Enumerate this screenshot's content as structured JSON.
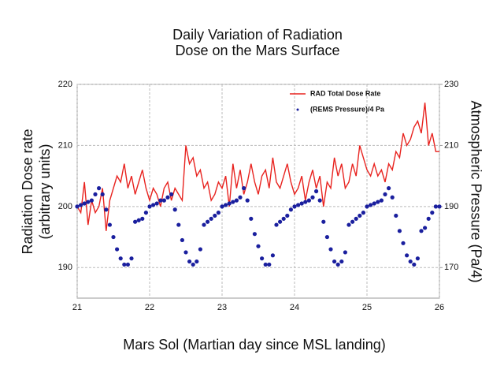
{
  "chart_data": {
    "type": "line",
    "title": [
      "Daily Variation of Radiation",
      "Dose on the Mars Surface"
    ],
    "xlabel": "Mars Sol (Martian day since MSL landing)",
    "ylabel": [
      "Radiation Dose rate",
      "(arbitrary units)"
    ],
    "y2label": "Atmospheric Pressure (Pa/4)",
    "xlim": [
      21,
      26
    ],
    "xticks": [
      21,
      22,
      23,
      24,
      25,
      26
    ],
    "ylim": [
      185,
      220
    ],
    "yticks": [
      190,
      200,
      210,
      220
    ],
    "y2lim": [
      160,
      230
    ],
    "y2ticks": [
      170,
      190,
      210,
      230
    ],
    "grid": true,
    "legend": "upper right",
    "x": [
      21,
      21.05,
      21.1,
      21.15,
      21.2,
      21.25,
      21.3,
      21.35,
      21.4,
      21.45,
      21.5,
      21.55,
      21.6,
      21.65,
      21.7,
      21.75,
      21.8,
      21.85,
      21.9,
      21.95,
      22,
      22.05,
      22.1,
      22.15,
      22.2,
      22.25,
      22.3,
      22.35,
      22.4,
      22.45,
      22.5,
      22.55,
      22.6,
      22.65,
      22.7,
      22.75,
      22.8,
      22.85,
      22.9,
      22.95,
      23,
      23.05,
      23.1,
      23.15,
      23.2,
      23.25,
      23.3,
      23.35,
      23.4,
      23.45,
      23.5,
      23.55,
      23.6,
      23.65,
      23.7,
      23.75,
      23.8,
      23.85,
      23.9,
      23.95,
      24,
      24.05,
      24.1,
      24.15,
      24.2,
      24.25,
      24.3,
      24.35,
      24.4,
      24.45,
      24.5,
      24.55,
      24.6,
      24.65,
      24.7,
      24.75,
      24.8,
      24.85,
      24.9,
      24.95,
      25,
      25.05,
      25.1,
      25.15,
      25.2,
      25.25,
      25.3,
      25.35,
      25.4,
      25.45,
      25.5,
      25.55,
      25.6,
      25.65,
      25.7,
      25.75,
      25.8,
      25.85,
      25.9,
      25.95,
      26
    ],
    "series": [
      {
        "name": "RAD Total Dose Rate",
        "color": "#e8231f",
        "style": "line",
        "values": [
          200,
          199,
          204,
          197,
          201,
          199,
          200,
          203,
          196,
          201,
          203,
          205,
          204,
          207,
          203,
          205,
          202,
          204,
          206,
          203,
          201,
          203,
          202,
          200,
          203,
          204,
          201,
          203,
          202,
          201,
          210,
          207,
          208,
          205,
          206,
          203,
          204,
          201,
          202,
          204,
          203,
          205,
          200,
          207,
          203,
          206,
          202,
          204,
          207,
          204,
          202,
          205,
          206,
          203,
          208,
          204,
          203,
          205,
          207,
          204,
          202,
          203,
          205,
          201,
          204,
          206,
          203,
          205,
          200,
          204,
          203,
          208,
          205,
          207,
          203,
          204,
          207,
          205,
          210,
          208,
          206,
          205,
          207,
          205,
          206,
          204,
          207,
          206,
          209,
          208,
          212,
          210,
          211,
          213,
          214,
          212,
          217,
          210,
          212,
          209,
          209
        ]
      },
      {
        "name": "(REMS Pressure)/4 Pa",
        "color": "#1a1f9e",
        "style": "dots",
        "axis": "y2",
        "values": [
          190,
          190.5,
          191,
          191.5,
          192,
          194,
          196,
          194,
          189,
          184,
          180,
          176,
          173,
          171,
          171,
          173,
          185,
          185.5,
          186,
          188,
          190,
          190.5,
          191,
          192,
          192,
          193,
          194,
          189,
          184,
          179,
          175,
          172,
          171,
          172,
          176,
          184,
          185,
          186,
          187,
          188,
          190,
          190.5,
          191,
          191.5,
          192,
          193,
          196,
          192,
          186,
          181,
          177,
          173,
          171,
          171,
          174,
          184,
          185,
          186,
          187,
          189,
          190,
          190.5,
          191,
          191.5,
          192,
          193,
          195,
          192,
          185,
          180,
          176,
          172,
          171,
          172,
          175,
          184,
          185,
          186,
          187,
          188,
          190,
          190.5,
          191,
          191.5,
          192,
          194,
          196,
          193,
          187,
          182,
          178,
          174,
          172,
          171,
          173,
          182,
          183,
          186,
          188,
          190,
          190
        ]
      }
    ]
  }
}
